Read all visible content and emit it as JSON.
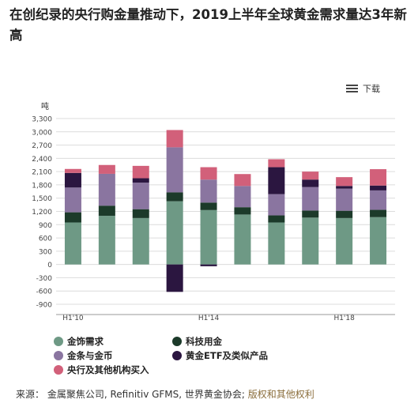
{
  "title": "在创纪录的央行购金量推动下，2019上半年全球黄金需求量达3年新高",
  "download_label": "下载",
  "source": {
    "prefix": "来源：",
    "text": "金属聚焦公司, Refinitiv GFMS, 世界黄金协会;",
    "link": "版权和其他权利"
  },
  "chart_data": {
    "type": "bar",
    "stacked": true,
    "ylabel": "吨",
    "ylim": [
      -900,
      3300
    ],
    "yticks": [
      -900,
      -600,
      -300,
      0,
      300,
      600,
      900,
      1200,
      1500,
      1800,
      2100,
      2400,
      2700,
      3000,
      3300
    ],
    "grid": true,
    "categories": [
      "H1'10",
      "H1'11",
      "H1'12",
      "H1'13",
      "H1'14",
      "H1'15",
      "H1'16",
      "H1'17",
      "H1'18",
      "H1'19"
    ],
    "x_tick_labels": [
      {
        "index": 0,
        "label": "H1'10"
      },
      {
        "index": 4,
        "label": "H1'14"
      },
      {
        "index": 8,
        "label": "H1'18"
      }
    ],
    "series": [
      {
        "name": "金饰需求",
        "color": "#6e9985",
        "values": [
          950,
          1100,
          1050,
          1430,
          1230,
          1130,
          950,
          1060,
          1050,
          1070
        ]
      },
      {
        "name": "科技用金",
        "color": "#1c3a2a",
        "values": [
          230,
          230,
          200,
          200,
          170,
          165,
          160,
          160,
          165,
          165
        ]
      },
      {
        "name": "金条与金币",
        "color": "#8a75a0",
        "values": [
          560,
          720,
          600,
          1020,
          520,
          480,
          480,
          530,
          500,
          440
        ]
      },
      {
        "name": "黄金ETF及类似产品",
        "color": "#2b1640",
        "values": [
          330,
          0,
          100,
          -620,
          -40,
          0,
          610,
          170,
          60,
          110
        ]
      },
      {
        "name": "央行及其他机构买入",
        "color": "#d2607a",
        "values": [
          90,
          200,
          280,
          390,
          280,
          270,
          180,
          180,
          200,
          370
        ]
      }
    ]
  }
}
